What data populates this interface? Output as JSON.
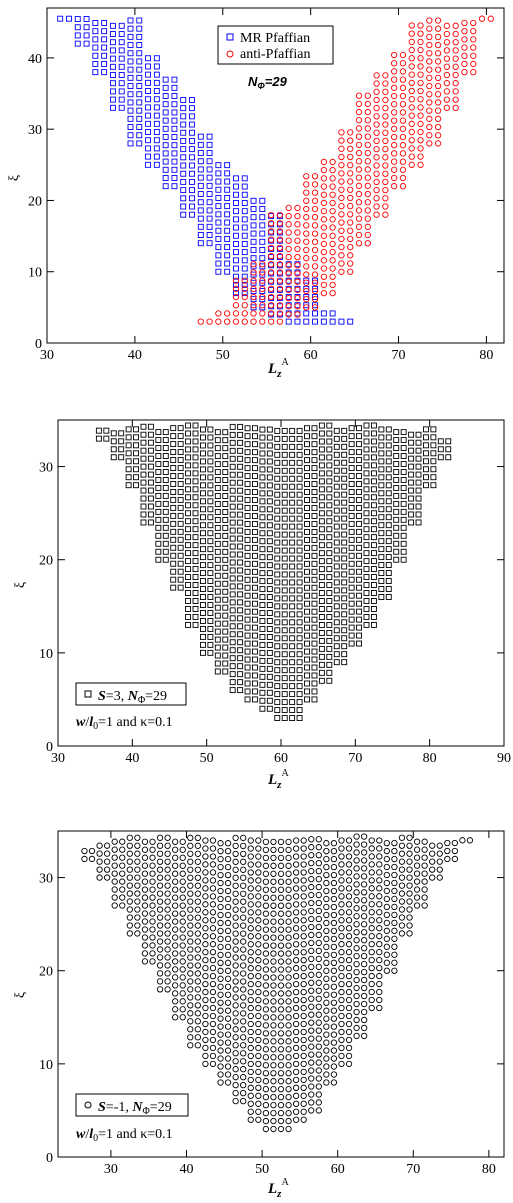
{
  "chart_data": [
    {
      "type": "scatter",
      "title": "",
      "xlabel": "L_z^A",
      "ylabel": "ξ",
      "xlim": [
        30,
        82
      ],
      "ylim": [
        0,
        47
      ],
      "xticks": [
        "30",
        "40",
        "50",
        "60",
        "70",
        "80"
      ],
      "yticks": [
        "0",
        "10",
        "20",
        "30",
        "40"
      ],
      "legend": {
        "placement": "top-center",
        "entries": [
          "MR Pfaffian",
          "anti-Pfaffian"
        ]
      },
      "annotation": "N_Φ=29",
      "series": [
        {
          "name": "MR Pfaffian",
          "marker": "square",
          "color": "#0000ff",
          "x": [
            32,
            34,
            36,
            38,
            40,
            42,
            44,
            46,
            48,
            50,
            52,
            54,
            56,
            58,
            60,
            62,
            64
          ],
          "y_max": [
            45.5,
            45.5,
            45.5,
            45.5,
            45.5,
            41,
            38,
            35,
            30,
            26,
            24,
            20,
            18,
            12,
            9,
            5,
            3
          ],
          "y_min": [
            45.5,
            42,
            38,
            33,
            28,
            25,
            22,
            18,
            14,
            10,
            7,
            5,
            4,
            3,
            3,
            3,
            3
          ]
        },
        {
          "name": "anti-Pfaffian",
          "marker": "circle",
          "color": "#ff0000",
          "x": [
            48,
            50,
            52,
            54,
            56,
            58,
            60,
            62,
            64,
            66,
            68,
            70,
            72,
            74,
            76,
            78,
            80
          ],
          "y_max": [
            3,
            5,
            9,
            12,
            18,
            20,
            24,
            26,
            30,
            35,
            38,
            41,
            45.5,
            45.5,
            45.5,
            45.5,
            45.5
          ],
          "y_min": [
            3,
            3,
            3,
            3,
            3,
            4,
            5,
            7,
            10,
            14,
            18,
            22,
            25,
            28,
            33,
            38,
            45.5
          ]
        }
      ]
    },
    {
      "type": "scatter",
      "title": "",
      "xlabel": "L_z^A",
      "ylabel": "ξ",
      "xlim": [
        30,
        90
      ],
      "ylim": [
        0,
        35
      ],
      "xticks": [
        "30",
        "40",
        "50",
        "60",
        "70",
        "80",
        "90"
      ],
      "yticks": [
        "0",
        "10",
        "20",
        "30"
      ],
      "legend": {
        "placement": "bottom-left",
        "entries": [
          "S=3, N_Φ=29"
        ]
      },
      "annotation": "w/l_0=1 and κ=0.1",
      "series": [
        {
          "name": "S=3, N_Φ=29",
          "marker": "square",
          "color": "#000000",
          "x": [
            36,
            38,
            40,
            42,
            44,
            46,
            48,
            50,
            52,
            54,
            56,
            58,
            60,
            62,
            64,
            66,
            68,
            70,
            72,
            74,
            76,
            78,
            80,
            82
          ],
          "y_max": [
            34,
            34,
            34,
            34.5,
            34.5,
            34.5,
            34.5,
            34.5,
            34.5,
            34.5,
            34.5,
            34.5,
            34.5,
            34.5,
            34.5,
            34.5,
            34.5,
            34.5,
            34.5,
            34.5,
            34,
            34,
            34,
            33
          ],
          "y_min": [
            33,
            31,
            28,
            24,
            20,
            17,
            13,
            10,
            8,
            6,
            5,
            4,
            3,
            3,
            5,
            7,
            9,
            11,
            13,
            16,
            20,
            24,
            28,
            31
          ]
        }
      ]
    },
    {
      "type": "scatter",
      "title": "",
      "xlabel": "L_z^A",
      "ylabel": "ξ",
      "xlim": [
        23,
        82
      ],
      "ylim": [
        0,
        35
      ],
      "xticks": [
        "30",
        "40",
        "50",
        "60",
        "70",
        "80"
      ],
      "yticks": [
        "0",
        "10",
        "20",
        "30"
      ],
      "legend": {
        "placement": "bottom-left",
        "entries": [
          "S=-1, N_Φ=29"
        ]
      },
      "annotation": "w/l_0=1 and κ=0.1",
      "series": [
        {
          "name": "S=-1, N_Φ=29",
          "marker": "circle",
          "color": "#000000",
          "x": [
            27,
            29,
            31,
            33,
            35,
            37,
            39,
            41,
            43,
            45,
            47,
            49,
            51,
            53,
            55,
            57,
            59,
            61,
            63,
            65,
            67,
            69,
            71,
            73,
            75,
            77
          ],
          "y_max": [
            33,
            34,
            34.5,
            34.5,
            34.5,
            34.5,
            34.5,
            34.5,
            34.5,
            34.5,
            34.5,
            34.5,
            34.5,
            34.5,
            34.5,
            34.5,
            34.5,
            34.5,
            34.5,
            34.5,
            34.5,
            34.5,
            34,
            34,
            34,
            34
          ],
          "y_min": [
            32,
            30,
            27,
            24,
            21,
            18,
            15,
            12,
            10,
            8,
            6,
            4,
            3,
            3,
            4,
            5,
            8,
            10,
            13,
            16,
            20,
            24,
            27,
            30,
            32,
            34
          ]
        }
      ]
    }
  ]
}
